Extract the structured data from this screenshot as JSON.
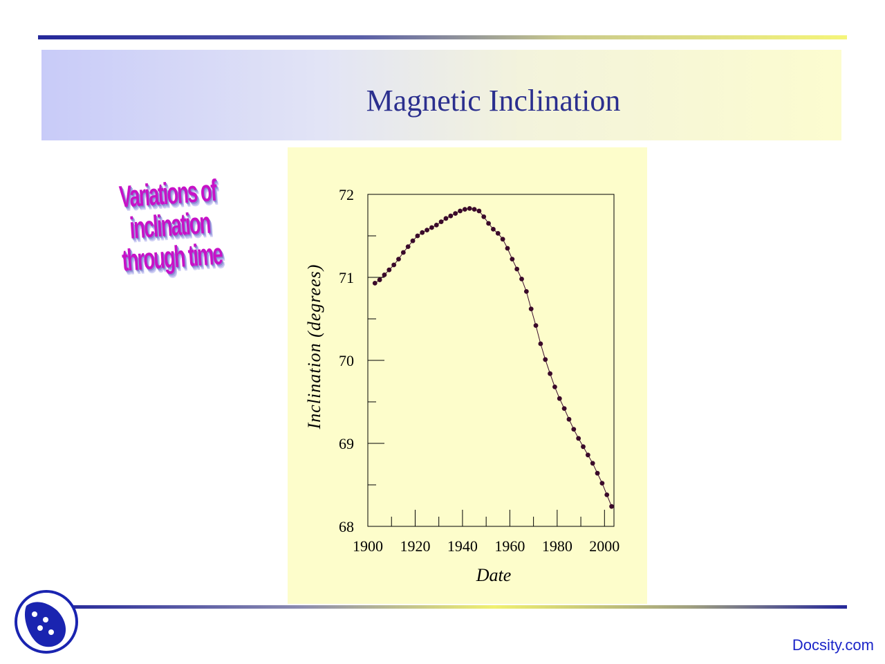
{
  "slide": {
    "title": "Magnetic Inclination",
    "wordart_lines": [
      "Variations of inclination",
      "through time"
    ],
    "footer_brand": "Docsity.com"
  },
  "colors": {
    "title": "#2b2f8e",
    "panel": "#fdfdcb",
    "points": "#3a0a2a",
    "wordart": "#c712c7",
    "brand": "#1a24c8"
  },
  "icons": {
    "logo": "docsity-logo-icon"
  },
  "chart_data": {
    "type": "scatter",
    "title": "",
    "xlabel": "Date",
    "ylabel": "Inclination (degrees)",
    "xlim": [
      1900,
      2004
    ],
    "ylim": [
      68,
      72
    ],
    "xticks": [
      1900,
      1920,
      1940,
      1960,
      1980,
      2000
    ],
    "yticks": [
      68,
      69,
      70,
      71,
      72
    ],
    "grid": false,
    "series": [
      {
        "x": [
          1903,
          1905,
          1907,
          1909,
          1911,
          1913,
          1915,
          1917,
          1919,
          1921,
          1923,
          1925,
          1927,
          1929,
          1931,
          1933,
          1935,
          1937,
          1939,
          1941,
          1943,
          1945,
          1947,
          1949,
          1951,
          1953,
          1955,
          1957,
          1959,
          1961,
          1963,
          1965,
          1967,
          1969,
          1971,
          1973,
          1975,
          1977,
          1979,
          1981,
          1983,
          1985,
          1987,
          1989,
          1991,
          1993,
          1995,
          1997,
          1999,
          2001,
          2003
        ],
        "y": [
          70.93,
          70.97,
          71.03,
          71.09,
          71.15,
          71.22,
          71.3,
          71.37,
          71.44,
          71.5,
          71.54,
          71.57,
          71.6,
          71.63,
          71.67,
          71.71,
          71.74,
          71.77,
          71.8,
          71.82,
          71.83,
          71.82,
          71.8,
          71.73,
          71.65,
          71.58,
          71.53,
          71.46,
          71.35,
          71.22,
          71.1,
          70.98,
          70.83,
          70.62,
          70.42,
          70.2,
          70.01,
          69.84,
          69.68,
          69.54,
          69.42,
          69.29,
          69.17,
          69.06,
          68.96,
          68.86,
          68.76,
          68.64,
          68.52,
          68.38,
          68.24
        ]
      }
    ]
  }
}
